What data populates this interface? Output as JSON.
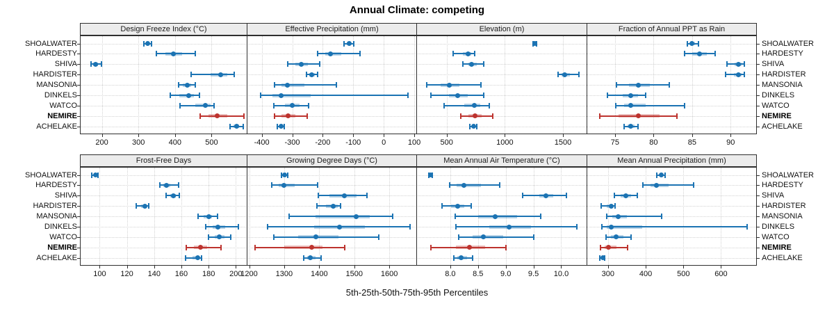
{
  "title": "Annual Climate: competing",
  "caption": "5th-25th-50th-75th-95th Percentiles",
  "colors": {
    "site_default": "#1b73b3",
    "site_highlight": "#bd332e",
    "grid": "#d2d2d2",
    "panel_border": "#2e2e2e",
    "header_bg": "#ececec"
  },
  "sites": [
    {
      "name": "SHOALWATER",
      "bold": false
    },
    {
      "name": "HARDESTY",
      "bold": false
    },
    {
      "name": "SHIVA",
      "bold": false
    },
    {
      "name": "HARDISTER",
      "bold": false
    },
    {
      "name": "MANSONIA",
      "bold": false
    },
    {
      "name": "DINKELS",
      "bold": false
    },
    {
      "name": "WATCO",
      "bold": false
    },
    {
      "name": "NEMIRE",
      "bold": true
    },
    {
      "name": "ACHELAKE",
      "bold": false
    }
  ],
  "chart_data": {
    "type": "trellis-dotplot-percentiles",
    "title": "Annual Climate: competing",
    "xlabel": "5th-25th-50th-75th-95th Percentiles",
    "percentile_order": [
      "p5",
      "p25",
      "p50",
      "p75",
      "p95"
    ],
    "rows": [
      "SHOALWATER",
      "HARDESTY",
      "SHIVA",
      "HARDISTER",
      "MANSONIA",
      "DINKELS",
      "WATCO",
      "NEMIRE",
      "ACHELAKE"
    ],
    "highlight_row": "NEMIRE",
    "legend": "none",
    "grid": "dotted",
    "panels": [
      {
        "title": "Design Freeze Index (°C)",
        "band": 0,
        "col": 0,
        "axis": {
          "min": 140,
          "max": 598,
          "ticks": [
            200,
            300,
            400,
            500
          ],
          "tick_labels": [
            "200",
            "300",
            "400",
            "500"
          ]
        },
        "values": [
          [
            315,
            321,
            326,
            331,
            336
          ],
          [
            349,
            374,
            396,
            419,
            456
          ],
          [
            170,
            177,
            183,
            190,
            199
          ],
          [
            445,
            498,
            524,
            543,
            562
          ],
          [
            409,
            421,
            434,
            444,
            455
          ],
          [
            387,
            412,
            438,
            452,
            467
          ],
          [
            413,
            455,
            483,
            497,
            506
          ],
          [
            469,
            492,
            515,
            542,
            588
          ],
          [
            550,
            560,
            568,
            576,
            586
          ]
        ]
      },
      {
        "title": "Effective Precipitation (mm)",
        "band": 0,
        "col": 1,
        "axis": {
          "min": -447,
          "max": 109,
          "ticks": [
            -400,
            -300,
            -200,
            -100,
            0,
            100
          ],
          "tick_labels": [
            "-400",
            "-300",
            "-200",
            "-100",
            "0",
            "100"
          ]
        },
        "values": [
          [
            -130,
            -121,
            -114,
            -107,
            -99
          ],
          [
            -217,
            -192,
            -174,
            -140,
            -77
          ],
          [
            -315,
            -290,
            -270,
            -248,
            -211
          ],
          [
            -254,
            -245,
            -237,
            -226,
            -216
          ],
          [
            -357,
            -335,
            -317,
            -260,
            -156
          ],
          [
            -404,
            -365,
            -336,
            -240,
            80
          ],
          [
            -360,
            -325,
            -300,
            -275,
            -247
          ],
          [
            -357,
            -335,
            -314,
            -290,
            -251
          ],
          [
            -348,
            -341,
            -336,
            -331,
            -326
          ]
        ]
      },
      {
        "title": "Elevation (m)",
        "band": 0,
        "col": 2,
        "axis": {
          "min": 245,
          "max": 1709,
          "ticks": [
            500,
            1000,
            1500
          ],
          "tick_labels": [
            "500",
            "1000",
            "1500"
          ]
        },
        "values": [
          [
            1240,
            1250,
            1256,
            1262,
            1270
          ],
          [
            557,
            640,
            684,
            710,
            742
          ],
          [
            637,
            690,
            715,
            760,
            817
          ],
          [
            1459,
            1490,
            1514,
            1560,
            1637
          ],
          [
            330,
            450,
            520,
            610,
            793
          ],
          [
            367,
            520,
            592,
            680,
            817
          ],
          [
            480,
            650,
            736,
            790,
            869
          ],
          [
            623,
            690,
            742,
            800,
            896
          ],
          [
            699,
            715,
            730,
            745,
            760
          ]
        ]
      },
      {
        "title": "Fraction of Annual PPT as Rain",
        "band": 0,
        "col": 3,
        "axis": {
          "min": 71.4,
          "max": 93.4,
          "ticks": [
            75,
            80,
            85,
            90
          ],
          "tick_labels": [
            "75",
            "80",
            "85",
            "90"
          ]
        },
        "values": [
          [
            84.4,
            84.7,
            85.0,
            85.4,
            85.8
          ],
          [
            84.0,
            85.0,
            86.0,
            86.9,
            88.0
          ],
          [
            89.5,
            90.5,
            91.0,
            91.4,
            91.8
          ],
          [
            89.3,
            90.4,
            91.0,
            91.4,
            91.8
          ],
          [
            75.2,
            76.8,
            78.0,
            79.5,
            82.0
          ],
          [
            74.0,
            76.0,
            77.0,
            78.0,
            79.0
          ],
          [
            75.1,
            76.2,
            77.0,
            79.0,
            84.0
          ],
          [
            73.0,
            75.5,
            78.0,
            80.8,
            83.0
          ],
          [
            76.2,
            76.6,
            77.0,
            77.5,
            78.0
          ]
        ]
      },
      {
        "title": "Frost-Free Days",
        "band": 1,
        "col": 0,
        "axis": {
          "min": 85.5,
          "max": 208.5,
          "ticks": [
            100,
            120,
            140,
            160,
            180,
            200
          ],
          "tick_labels": [
            "100",
            "120",
            "140",
            "160",
            "180",
            "200"
          ]
        },
        "values": [
          [
            94,
            95.5,
            97,
            98,
            99
          ],
          [
            144,
            146.5,
            149,
            152,
            158
          ],
          [
            149,
            152,
            154,
            156,
            158.5
          ],
          [
            127,
            130.5,
            133,
            134.5,
            136
          ],
          [
            172.5,
            176.5,
            180,
            182.5,
            186.5
          ],
          [
            178,
            183,
            187,
            192,
            202
          ],
          [
            180,
            184.5,
            188,
            191.5,
            196
          ],
          [
            163.5,
            169,
            174,
            179,
            189
          ],
          [
            163,
            168,
            172,
            173.5,
            175
          ]
        ]
      },
      {
        "title": "Growing Degree Days (°C)",
        "band": 1,
        "col": 1,
        "axis": {
          "min": 1195,
          "max": 1679,
          "ticks": [
            1200,
            1300,
            1400,
            1500,
            1600
          ],
          "tick_labels": [
            "1200",
            "1300",
            "1400",
            "1500",
            "1600"
          ]
        },
        "values": [
          [
            1293,
            1298,
            1302,
            1306,
            1310
          ],
          [
            1265,
            1285,
            1300,
            1330,
            1395
          ],
          [
            1397,
            1430,
            1471,
            1506,
            1536
          ],
          [
            1394,
            1420,
            1440,
            1452,
            1460
          ],
          [
            1315,
            1390,
            1505,
            1545,
            1610
          ],
          [
            1253,
            1385,
            1458,
            1530,
            1660
          ],
          [
            1270,
            1340,
            1390,
            1455,
            1570
          ],
          [
            1216,
            1300,
            1378,
            1410,
            1472
          ],
          [
            1356,
            1366,
            1374,
            1390,
            1405
          ]
        ]
      },
      {
        "title": "Mean Annual Air Temperature (°C)",
        "band": 1,
        "col": 2,
        "axis": {
          "min": 7.4,
          "max": 10.47,
          "ticks": [
            8.0,
            8.5,
            9.0,
            9.5,
            10.0
          ],
          "tick_labels": [
            "8.0",
            "8.5",
            "9.0",
            "9.5",
            "10.0"
          ]
        },
        "values": [
          [
            7.61,
            7.63,
            7.64,
            7.66,
            7.68
          ],
          [
            7.99,
            8.12,
            8.25,
            8.55,
            8.89
          ],
          [
            9.31,
            9.6,
            9.73,
            9.85,
            10.09
          ],
          [
            7.85,
            8.02,
            8.13,
            8.25,
            8.38
          ],
          [
            8.09,
            8.5,
            8.81,
            9.2,
            9.63
          ],
          [
            8.1,
            8.7,
            9.06,
            9.45,
            10.28
          ],
          [
            8.15,
            8.4,
            8.6,
            8.95,
            9.51
          ],
          [
            7.65,
            8.1,
            8.35,
            8.63,
            9.0
          ],
          [
            8.07,
            8.13,
            8.2,
            8.3,
            8.4
          ]
        ]
      },
      {
        "title": "Mean Annual Precipitation (mm)",
        "band": 1,
        "col": 3,
        "axis": {
          "min": 245,
          "max": 695,
          "ticks": [
            300,
            400,
            500,
            600
          ],
          "tick_labels": [
            "300",
            "400",
            "500",
            "600"
          ]
        },
        "values": [
          [
            430,
            436,
            441,
            446,
            451
          ],
          [
            393,
            412,
            429,
            460,
            527
          ],
          [
            317,
            334,
            348,
            362,
            378
          ],
          [
            282,
            296,
            308,
            313,
            318
          ],
          [
            296,
            312,
            327,
            350,
            443
          ],
          [
            283,
            297,
            308,
            390,
            670
          ],
          [
            294,
            308,
            321,
            340,
            361
          ],
          [
            280,
            291,
            301,
            322,
            352
          ],
          [
            278,
            282,
            286,
            289,
            292
          ]
        ]
      }
    ]
  }
}
